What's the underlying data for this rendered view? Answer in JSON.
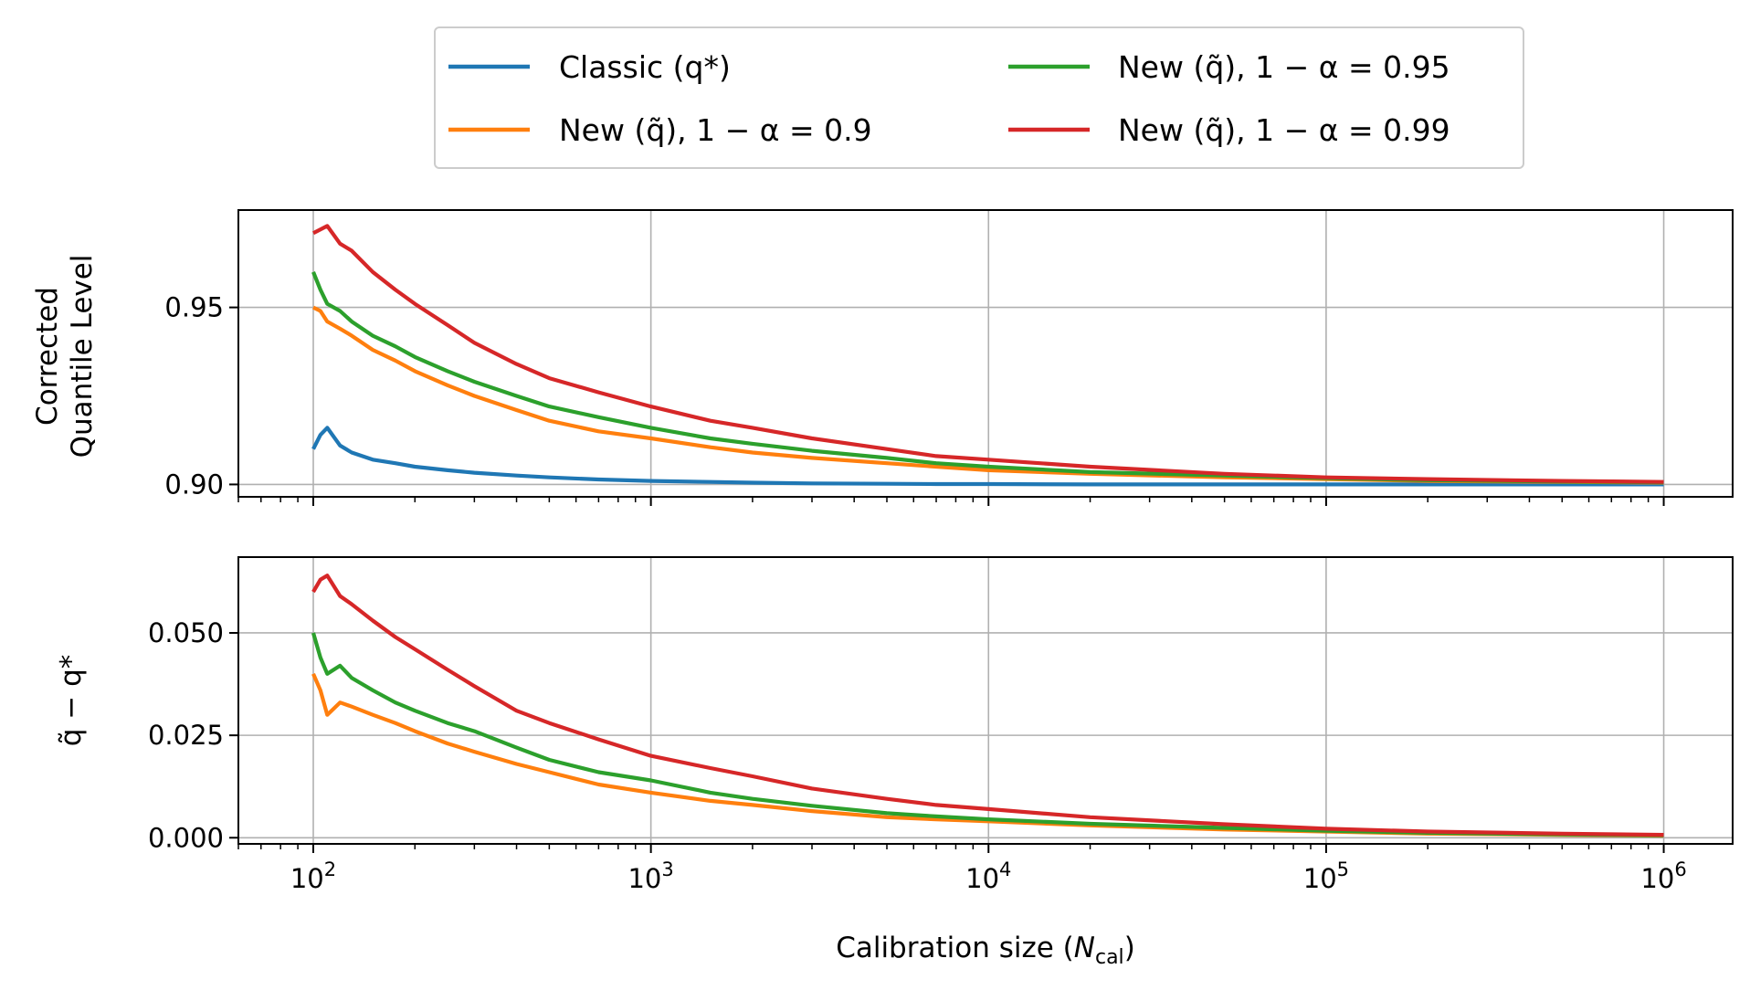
{
  "legend": {
    "entries": [
      {
        "label": "Classic (q*)",
        "color": "#1f77b4"
      },
      {
        "label": "New (q̃), 1 − α = 0.95",
        "color": "#2ca02c"
      },
      {
        "label": "New (q̃), 1 − α = 0.9",
        "color": "#ff7f0e"
      },
      {
        "label": "New (q̃), 1 − α = 0.99",
        "color": "#d62728"
      }
    ]
  },
  "chart_data": [
    {
      "type": "line",
      "panel": "top",
      "title": "",
      "xlabel": "",
      "ylabel": "Corrected Quantile Level",
      "ylabel_lines": [
        "Corrected",
        "Quantile Level"
      ],
      "xscale": "log",
      "xlim": [
        60,
        1600000
      ],
      "ylim": [
        0.8965,
        0.9775
      ],
      "xticks": [
        100,
        1000,
        10000,
        100000,
        1000000
      ],
      "yticks": [
        0.9,
        0.95
      ],
      "ytick_labels": [
        "0.90",
        "0.95"
      ],
      "grid": true,
      "x": [
        100,
        105,
        110,
        120,
        130,
        150,
        175,
        200,
        250,
        300,
        400,
        500,
        700,
        1000,
        1500,
        2000,
        3000,
        5000,
        7000,
        10000,
        20000,
        50000,
        100000,
        200000,
        500000,
        1000000
      ],
      "series": [
        {
          "name": "Classic (q*)",
          "color": "#1f77b4",
          "values": [
            0.91,
            0.914,
            0.916,
            0.911,
            0.909,
            0.907,
            0.906,
            0.905,
            0.904,
            0.9033,
            0.9025,
            0.902,
            0.9014,
            0.901,
            0.9007,
            0.9005,
            0.9003,
            0.9002,
            0.9001,
            0.9001,
            0.9,
            0.9,
            0.9,
            0.9,
            0.9,
            0.9
          ]
        },
        {
          "name": "New (q̃), 1 − α = 0.9",
          "color": "#ff7f0e",
          "values": [
            0.95,
            0.949,
            0.946,
            0.944,
            0.942,
            0.938,
            0.935,
            0.932,
            0.928,
            0.925,
            0.921,
            0.918,
            0.915,
            0.913,
            0.9105,
            0.909,
            0.9075,
            0.906,
            0.905,
            0.904,
            0.903,
            0.902,
            0.9015,
            0.901,
            0.9007,
            0.9005
          ]
        },
        {
          "name": "New (q̃), 1 − α = 0.95",
          "color": "#2ca02c",
          "values": [
            0.96,
            0.955,
            0.951,
            0.949,
            0.946,
            0.942,
            0.939,
            0.936,
            0.932,
            0.929,
            0.925,
            0.922,
            0.919,
            0.916,
            0.913,
            0.9115,
            0.9095,
            0.9075,
            0.906,
            0.905,
            0.9035,
            0.9025,
            0.9018,
            0.9012,
            0.9008,
            0.9006
          ]
        },
        {
          "name": "New (q̃), 1 − α = 0.99",
          "color": "#d62728",
          "values": [
            0.971,
            0.972,
            0.973,
            0.968,
            0.966,
            0.96,
            0.955,
            0.951,
            0.945,
            0.94,
            0.934,
            0.93,
            0.926,
            0.922,
            0.918,
            0.916,
            0.913,
            0.91,
            0.908,
            0.907,
            0.905,
            0.903,
            0.902,
            0.9015,
            0.901,
            0.9007
          ]
        }
      ]
    },
    {
      "type": "line",
      "panel": "bottom",
      "title": "",
      "xlabel": "Calibration size (N_cal)",
      "xlabel_parts": {
        "main": "Calibration size (",
        "var": "N",
        "sub": "cal",
        "close": ")"
      },
      "ylabel": "q̃ − q*",
      "xscale": "log",
      "xlim": [
        60,
        1600000
      ],
      "ylim": [
        -0.0015,
        0.0685
      ],
      "xticks": [
        100,
        1000,
        10000,
        100000,
        1000000
      ],
      "xtick_exponents": [
        "2",
        "3",
        "4",
        "5",
        "6"
      ],
      "yticks": [
        0.0,
        0.025,
        0.05
      ],
      "ytick_labels": [
        "0.000",
        "0.025",
        "0.050"
      ],
      "grid": true,
      "x": [
        100,
        105,
        110,
        120,
        130,
        150,
        175,
        200,
        250,
        300,
        400,
        500,
        700,
        1000,
        1500,
        2000,
        3000,
        5000,
        7000,
        10000,
        20000,
        50000,
        100000,
        200000,
        500000,
        1000000
      ],
      "series": [
        {
          "name": "New (q̃), 1 − α = 0.9",
          "color": "#ff7f0e",
          "values": [
            0.04,
            0.036,
            0.03,
            0.033,
            0.032,
            0.03,
            0.028,
            0.026,
            0.023,
            0.021,
            0.018,
            0.016,
            0.013,
            0.011,
            0.009,
            0.008,
            0.0065,
            0.005,
            0.0045,
            0.004,
            0.003,
            0.002,
            0.0015,
            0.001,
            0.0007,
            0.0005
          ]
        },
        {
          "name": "New (q̃), 1 − α = 0.95",
          "color": "#2ca02c",
          "values": [
            0.05,
            0.044,
            0.04,
            0.042,
            0.039,
            0.036,
            0.033,
            0.031,
            0.028,
            0.026,
            0.022,
            0.019,
            0.016,
            0.014,
            0.011,
            0.0095,
            0.0078,
            0.006,
            0.0052,
            0.0045,
            0.0034,
            0.0024,
            0.0017,
            0.0012,
            0.0008,
            0.0006
          ]
        },
        {
          "name": "New (q̃), 1 − α = 0.99",
          "color": "#d62728",
          "values": [
            0.06,
            0.063,
            0.064,
            0.059,
            0.057,
            0.053,
            0.049,
            0.046,
            0.041,
            0.037,
            0.031,
            0.028,
            0.024,
            0.02,
            0.017,
            0.015,
            0.012,
            0.0095,
            0.008,
            0.007,
            0.005,
            0.0033,
            0.0022,
            0.0015,
            0.001,
            0.0007
          ]
        }
      ]
    }
  ]
}
